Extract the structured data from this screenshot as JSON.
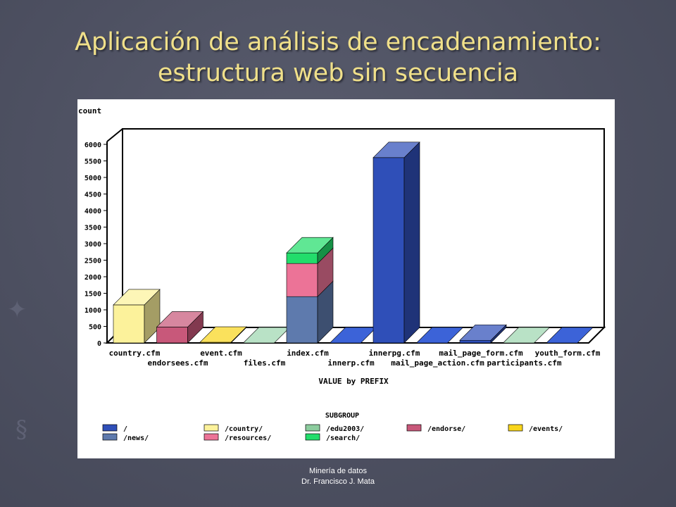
{
  "slide": {
    "title_line1": "Aplicación de análisis de encadenamiento:",
    "title_line2": "estructura web sin secuencia",
    "footer_line1": "Minería de datos",
    "footer_line2": "Dr. Francisco J. Mata"
  },
  "chart_data": {
    "type": "bar",
    "stacked": true,
    "view": "3d",
    "ylabel": "count",
    "xlabel": "VALUE by PREFIX",
    "ylim": [
      0,
      6000
    ],
    "yticks": [
      0,
      500,
      1000,
      1500,
      2000,
      2500,
      3000,
      3500,
      4000,
      4500,
      5000,
      5500,
      6000
    ],
    "grid": false,
    "legend_title": "SUBGROUP",
    "legend_position": "bottom",
    "categories": [
      "country.cfm",
      "endorsees.cfm",
      "event.cfm",
      "files.cfm",
      "index.cfm",
      "innerp.cfm",
      "innerpg.cfm",
      "mail_page_action.cfm",
      "mail_page_form.cfm",
      "participants.cfm",
      "youth_form.cfm"
    ],
    "series": [
      {
        "name": "/",
        "color": "#2f4fb8",
        "values": [
          0,
          0,
          0,
          0,
          0,
          0,
          5600,
          0,
          80,
          0,
          0
        ]
      },
      {
        "name": "/news/",
        "color": "#5e7aad",
        "values": [
          0,
          0,
          0,
          0,
          1400,
          0,
          0,
          0,
          0,
          0,
          0
        ]
      },
      {
        "name": "/country/",
        "color": "#fcf29b",
        "values": [
          1150,
          0,
          0,
          0,
          0,
          0,
          0,
          0,
          0,
          0,
          0
        ]
      },
      {
        "name": "/resources/",
        "color": "#ec7397",
        "values": [
          0,
          0,
          0,
          0,
          1000,
          0,
          0,
          0,
          0,
          0,
          0
        ]
      },
      {
        "name": "/edu2003/",
        "color": "#8ccc9e",
        "values": [
          0,
          0,
          0,
          0,
          0,
          0,
          0,
          0,
          0,
          0,
          0
        ]
      },
      {
        "name": "/search/",
        "color": "#22dd6b",
        "values": [
          0,
          0,
          0,
          0,
          320,
          0,
          0,
          0,
          0,
          0,
          0
        ]
      },
      {
        "name": "/endorse/",
        "color": "#c8587a",
        "values": [
          0,
          480,
          0,
          0,
          0,
          0,
          0,
          0,
          0,
          0,
          0
        ]
      },
      {
        "name": "/events/",
        "color": "#f8d51c",
        "values": [
          0,
          0,
          20,
          0,
          0,
          0,
          0,
          0,
          0,
          0,
          0
        ]
      }
    ],
    "empty_slab_colors": [
      "#fcf29b",
      "#c8587a",
      "#f8d51c",
      "#b9e2c6",
      "#5e7aad",
      "#3c63d8",
      "#3c63d8",
      "#3c63d8",
      "#3c63d8",
      "#b9e2c6",
      "#3c63d8"
    ]
  }
}
